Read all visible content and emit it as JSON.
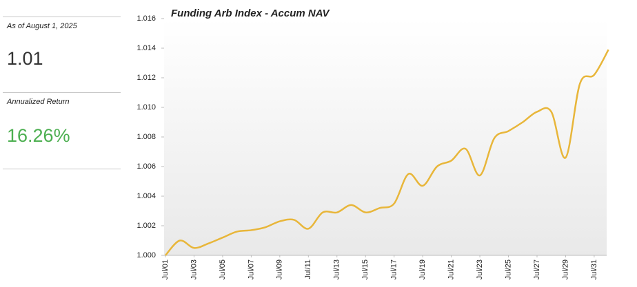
{
  "panel": {
    "as_of": "As of August 1, 2025",
    "nav": "1.01",
    "return_label": "Annualized Return",
    "return_value": "16.26%"
  },
  "chart_data": {
    "type": "line",
    "title": "Funding Arb Index - Accum NAV",
    "categories": [
      "Jul/01",
      null,
      "Jul/03",
      null,
      "Jul/05",
      null,
      "Jul/07",
      null,
      "Jul/09",
      null,
      "Jul/11",
      null,
      "Jul/13",
      null,
      "Jul/15",
      null,
      "Jul/17",
      null,
      "Jul/19",
      null,
      "Jul/21",
      null,
      "Jul/23",
      null,
      "Jul/25",
      null,
      "Jul/27",
      null,
      "Jul/29",
      null,
      "Jul/31",
      null
    ],
    "series": [
      {
        "name": "Accum NAV",
        "color": "#e8b63a",
        "values": [
          1.0,
          1.001,
          1.0005,
          1.0008,
          1.0012,
          1.0016,
          1.0017,
          1.0019,
          1.0023,
          1.0024,
          1.0018,
          1.0029,
          1.0029,
          1.0034,
          1.0029,
          1.0032,
          1.0035,
          1.0055,
          1.0047,
          1.006,
          1.0064,
          1.0072,
          1.0054,
          1.0079,
          1.0084,
          1.009,
          1.0097,
          1.0097,
          1.0066,
          1.0116,
          1.0122,
          1.0139
        ]
      }
    ],
    "ylim": [
      1.0,
      1.016
    ],
    "yticks": [
      {
        "value": 1.0,
        "label": "1.000"
      },
      {
        "value": 1.002,
        "label": "1.002"
      },
      {
        "value": 1.004,
        "label": "1.004"
      },
      {
        "value": 1.006,
        "label": "1.006"
      },
      {
        "value": 1.008,
        "label": "1.008"
      },
      {
        "value": 1.01,
        "label": "1.010"
      },
      {
        "value": 1.012,
        "label": "1.012"
      },
      {
        "value": 1.014,
        "label": "1.014"
      },
      {
        "value": 1.016,
        "label": "1.016"
      }
    ],
    "grid": false
  }
}
